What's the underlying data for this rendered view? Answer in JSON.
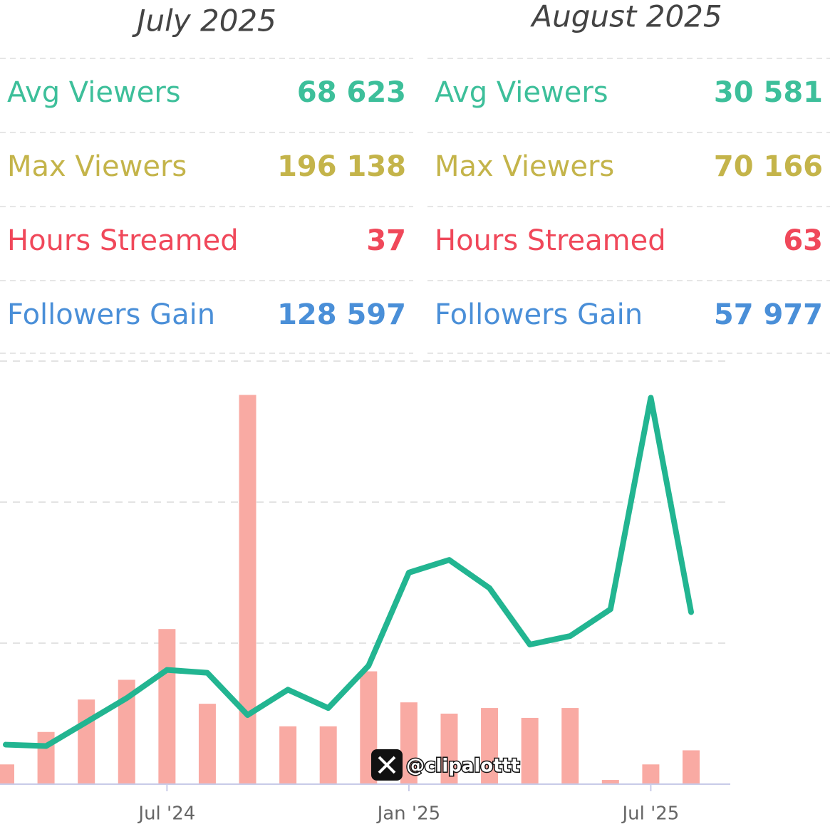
{
  "panels": [
    {
      "title": "July 2025",
      "rows": [
        {
          "label": "Avg Viewers",
          "value": "68 623"
        },
        {
          "label": "Max Viewers",
          "value": "196 138"
        },
        {
          "label": "Hours Streamed",
          "value": "37"
        },
        {
          "label": "Followers Gain",
          "value": "128 597"
        }
      ]
    },
    {
      "title": "August 2025",
      "rows": [
        {
          "label": "Avg Viewers",
          "value": "30 581"
        },
        {
          "label": "Max Viewers",
          "value": "70 166"
        },
        {
          "label": "Hours Streamed",
          "value": "63"
        },
        {
          "label": "Followers Gain",
          "value": "57 977"
        }
      ]
    }
  ],
  "row_colors": [
    "#3dbf9a",
    "#c4b44a",
    "#f0485a",
    "#4a8fd8"
  ],
  "chart_data": {
    "type": "combo",
    "categories": [
      null,
      null,
      null,
      null,
      "Jul '24",
      null,
      null,
      null,
      null,
      null,
      "Jan '25",
      null,
      null,
      null,
      null,
      null,
      "Jul '25",
      null
    ],
    "series": [
      {
        "type": "bar",
        "color": "#f9aaa3",
        "values": [
          0.14,
          0.37,
          0.6,
          0.74,
          1.1,
          0.57,
          2.76,
          0.41,
          0.41,
          0.8,
          0.58,
          0.5,
          0.54,
          0.47,
          0.54,
          0.03,
          0.14,
          0.24
        ]
      },
      {
        "type": "line",
        "color": "#22b591",
        "values": [
          0.28,
          0.27,
          0.44,
          0.61,
          0.81,
          0.79,
          0.49,
          0.67,
          0.54,
          0.84,
          1.5,
          1.59,
          1.39,
          0.99,
          1.05,
          1.24,
          2.74,
          1.22
        ]
      }
    ],
    "ylim": [
      0,
      3
    ],
    "yticks": [
      0,
      1,
      2,
      3
    ],
    "grid": true
  },
  "watermark": "@clipalottt"
}
